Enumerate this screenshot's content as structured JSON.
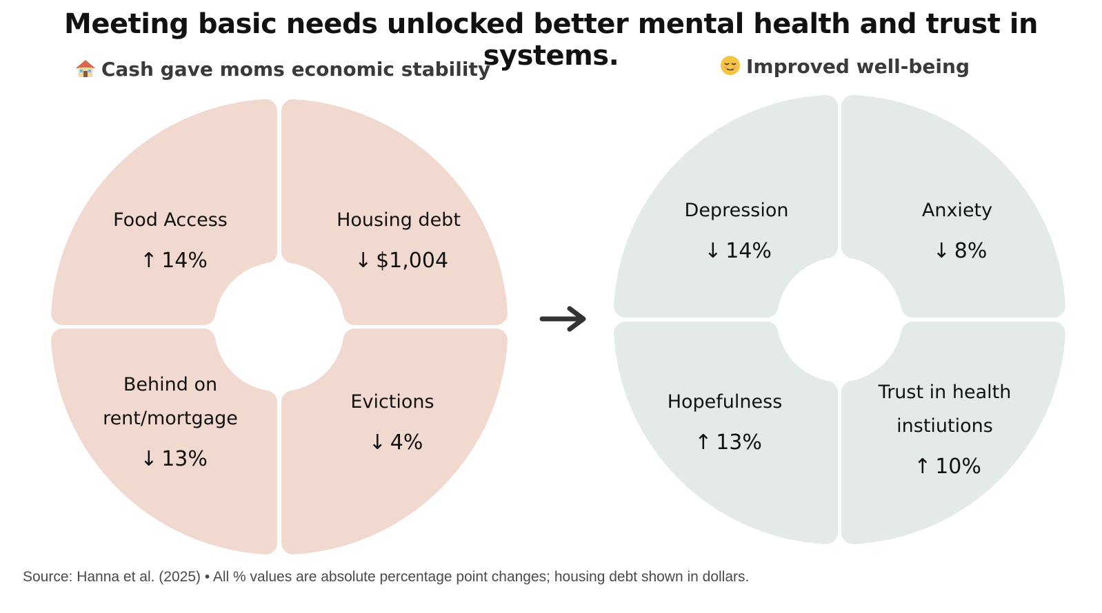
{
  "title": "Meeting basic needs unlocked better mental health and trust in systems.",
  "left_panel": {
    "icon": "house-icon",
    "subtitle": "Cash gave moms economic stability",
    "fill": "#f1d9cf",
    "segments": [
      {
        "name_lines": [
          "Food Access"
        ],
        "arrow": "up",
        "value": "14%"
      },
      {
        "name_lines": [
          "Housing debt"
        ],
        "arrow": "down",
        "value": "$1,004"
      },
      {
        "name_lines": [
          "Behind on",
          "rent/mortgage"
        ],
        "arrow": "down",
        "value": "13%"
      },
      {
        "name_lines": [
          "Evictions"
        ],
        "arrow": "down",
        "value": "4%"
      }
    ]
  },
  "connector": {
    "icon": "arrow-right-icon"
  },
  "right_panel": {
    "icon": "relieved-face-icon",
    "subtitle": "Improved well-being",
    "fill": "#e3eae8",
    "segments": [
      {
        "name_lines": [
          "Depression"
        ],
        "arrow": "down",
        "value": "14%"
      },
      {
        "name_lines": [
          "Anxiety"
        ],
        "arrow": "down",
        "value": "8%"
      },
      {
        "name_lines": [
          "Hopefulness"
        ],
        "arrow": "up",
        "value": "13%"
      },
      {
        "name_lines": [
          "Trust in health",
          "instiutions"
        ],
        "arrow": "up",
        "value": "10%"
      }
    ]
  },
  "source": "Source: Hanna et al. (2025) • All % values are absolute percentage point changes; housing debt shown in dollars."
}
